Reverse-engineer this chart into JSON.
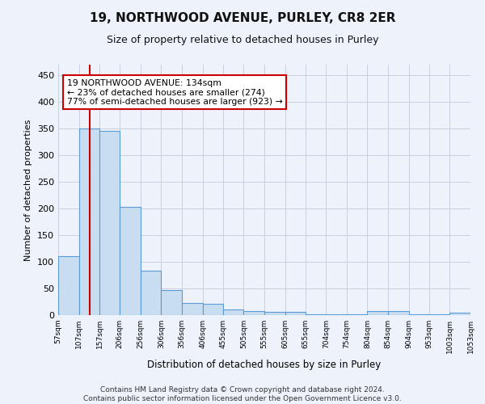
{
  "title": "19, NORTHWOOD AVENUE, PURLEY, CR8 2ER",
  "subtitle": "Size of property relative to detached houses in Purley",
  "xlabel": "Distribution of detached houses by size in Purley",
  "ylabel": "Number of detached properties",
  "bar_color": "#c9ddf0",
  "bar_edge_color": "#5b9bd5",
  "bg_color": "#edf2fb",
  "grid_color": "#c8cfe0",
  "vline_color": "#cc0000",
  "vline_x": 134,
  "annotation_line1": "19 NORTHWOOD AVENUE: 134sqm",
  "annotation_line2": "← 23% of detached houses are smaller (274)",
  "annotation_line3": "77% of semi-detached houses are larger (923) →",
  "annotation_box_color": "#ffffff",
  "annotation_box_edge": "#cc0000",
  "footnote": "Contains HM Land Registry data © Crown copyright and database right 2024.\nContains public sector information licensed under the Open Government Licence v3.0.",
  "bin_edges": [
    57,
    107,
    157,
    206,
    256,
    306,
    356,
    406,
    455,
    505,
    555,
    605,
    655,
    704,
    754,
    804,
    854,
    904,
    953,
    1003,
    1053
  ],
  "bin_heights": [
    110,
    350,
    345,
    203,
    83,
    47,
    23,
    21,
    10,
    7,
    6,
    6,
    1,
    1,
    1,
    7,
    7,
    1,
    1,
    4
  ],
  "ylim": [
    0,
    470
  ],
  "yticks": [
    0,
    50,
    100,
    150,
    200,
    250,
    300,
    350,
    400,
    450
  ],
  "title_fontsize": 11,
  "subtitle_fontsize": 9,
  "xlabel_fontsize": 8.5,
  "ylabel_fontsize": 8,
  "ytick_fontsize": 8,
  "xtick_fontsize": 6.5,
  "footnote_fontsize": 6.5,
  "annot_fontsize": 7.8
}
